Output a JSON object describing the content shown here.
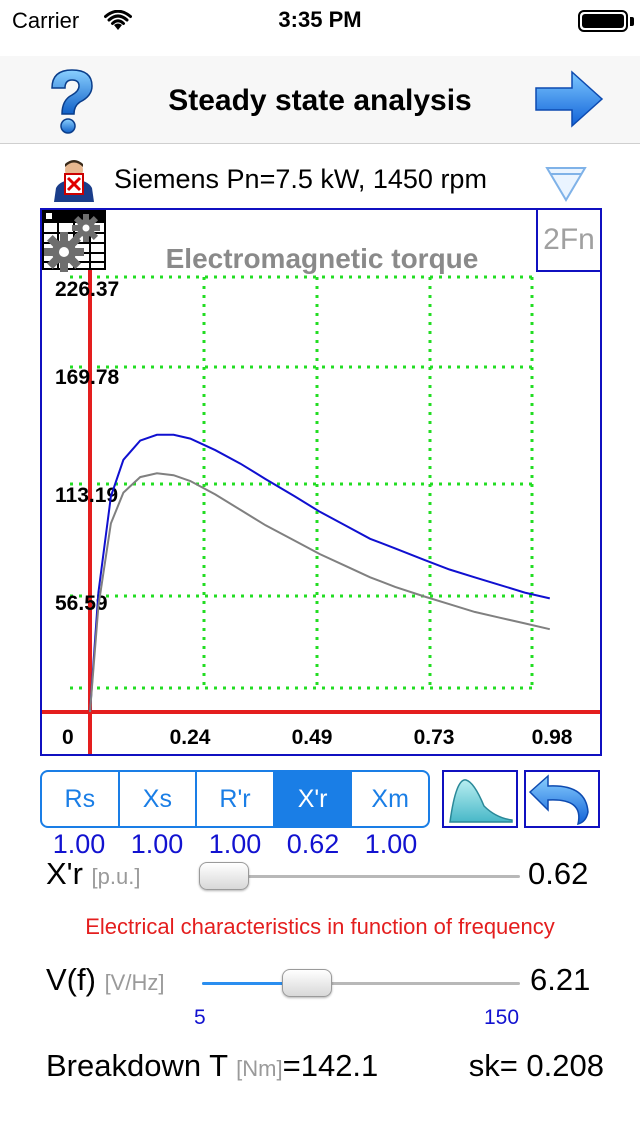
{
  "status_bar": {
    "carrier": "Carrier",
    "time": "3:35 PM"
  },
  "nav": {
    "title": "Steady state analysis",
    "help_icon": "question-mark-icon",
    "forward_icon": "arrow-right-icon"
  },
  "motor": {
    "label": "Siemens Pn=7.5 kW, 1450 rpm",
    "icon": "motor-person-icon",
    "dropdown_icon": "triangle-down-icon"
  },
  "chart_data": {
    "type": "line",
    "title": "Electromagnetic torque",
    "x_ticks": [
      "0",
      "0.24",
      "0.49",
      "0.73",
      "0.98"
    ],
    "y_ticks": [
      "56.59",
      "113.19",
      "169.78",
      "226.37"
    ],
    "xlim": [
      0,
      1.22
    ],
    "ylim": [
      0,
      240
    ],
    "grid": true,
    "series": [
      {
        "color": "#1010d0",
        "x": [
          0,
          0.02,
          0.05,
          0.08,
          0.12,
          0.16,
          0.2,
          0.24,
          0.3,
          0.36,
          0.42,
          0.49,
          0.55,
          0.61,
          0.67,
          0.73,
          0.8,
          0.86,
          0.92,
          0.98,
          1.04,
          1.1
        ],
        "y": [
          0,
          62,
          112,
          131,
          141,
          144,
          144,
          142,
          136,
          129,
          121,
          112,
          104,
          97,
          90,
          85,
          79,
          74,
          70,
          66,
          62,
          59
        ]
      },
      {
        "color": "#808080",
        "x": [
          0,
          0.02,
          0.05,
          0.08,
          0.12,
          0.16,
          0.2,
          0.24,
          0.3,
          0.36,
          0.42,
          0.49,
          0.55,
          0.61,
          0.67,
          0.73,
          0.8,
          0.86,
          0.92,
          0.98,
          1.04,
          1.1
        ],
        "y": [
          0,
          55,
          98,
          114,
          122,
          124,
          123,
          120,
          113,
          105,
          97,
          89,
          82,
          76,
          70,
          65,
          60,
          56,
          52,
          49,
          46,
          43
        ]
      }
    ]
  },
  "chart_controls": {
    "two_fn_label": "2Fn",
    "table_icon": "table-grid-icon",
    "gear_icon": "gear-icon"
  },
  "param_tabs": {
    "items": [
      {
        "label": "Rs",
        "value": "1.00"
      },
      {
        "label": "Xs",
        "value": "1.00"
      },
      {
        "label": "R'r",
        "value": "1.00"
      },
      {
        "label": "X'r",
        "value": "0.62",
        "active": true
      },
      {
        "label": "Xm",
        "value": "1.00"
      }
    ],
    "curve_icon": "torque-curve-icon",
    "undo_icon": "undo-arrow-icon"
  },
  "xr_slider": {
    "name": "X'r",
    "unit": "[p.u.]",
    "value": "0.62",
    "fraction": 0.07
  },
  "freq": {
    "caption": "Electrical characteristics in function of frequency",
    "name": "V(f)",
    "unit": "[V/Hz]",
    "value": "6.21",
    "fraction": 0.33,
    "min": "5",
    "max": "150"
  },
  "breakdown": {
    "label": "Breakdown T",
    "unit": "[Nm]",
    "value": "=142.1",
    "sk_label": "sk=",
    "sk_value": "0.208"
  },
  "colors": {
    "accent": "#1a7ee6",
    "chart_border": "#1010c0",
    "grid": "#22dd22",
    "axis": "#e41e1e",
    "caption": "#e41e1e",
    "value_blue": "#1212d0"
  }
}
